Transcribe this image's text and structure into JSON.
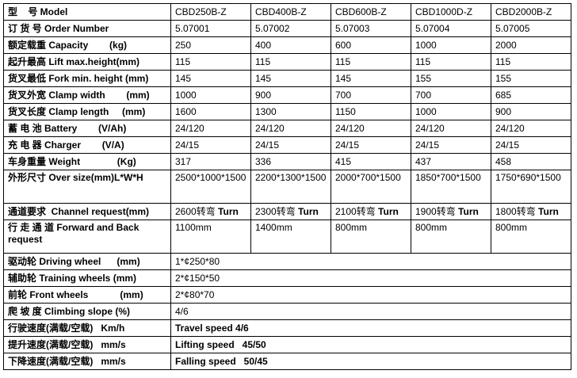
{
  "table": {
    "models_row": "Model",
    "rows": [
      {
        "label": "型    号 Model",
        "values": [
          "CBD250B-Z",
          "CBD400B-Z",
          "CBD600B-Z",
          "CBD1000D-Z",
          "CBD2000B-Z"
        ]
      },
      {
        "label": "订 货 号 Order Number",
        "values": [
          "5.07001",
          "5.07002",
          "5.07003",
          "5.07004",
          "5.07005"
        ]
      },
      {
        "label": "额定载重 Capacity        (kg)",
        "values": [
          "250",
          "400",
          "600",
          "1000",
          "2000"
        ]
      },
      {
        "label": "起升最高 Lift max.height(mm)",
        "values": [
          "115",
          "115",
          "115",
          "115",
          "115"
        ]
      },
      {
        "label": "货叉最低 Fork min. height (mm)",
        "values": [
          "145",
          "145",
          "145",
          "155",
          "155"
        ]
      },
      {
        "label": "货叉外宽 Clamp width        (mm)",
        "values": [
          "1000",
          "900",
          "700",
          "700",
          "685"
        ]
      },
      {
        "label": "货叉长度 Clamp length     (mm)",
        "values": [
          "1600",
          "1300",
          "1150",
          "1000",
          "900"
        ]
      },
      {
        "label": "蓄 电 池 Battery        (V/Ah)",
        "values": [
          "24/120",
          "24/120",
          "24/120",
          "24/120",
          "24/120"
        ]
      },
      {
        "label": "充 电 器 Charger        (V/A)",
        "values": [
          "24/15",
          "24/15",
          "24/15",
          "24/15",
          "24/15"
        ]
      },
      {
        "label": "车身重量 Weight              (Kg)",
        "values": [
          "317",
          "336",
          "415",
          "437",
          "458"
        ]
      },
      {
        "label": "外形尺寸 Over size(mm)L*W*H",
        "values": [
          "2500*1000*1500",
          "2200*1300*1500",
          "2000*700*1500",
          "1850*700*1500",
          "1750*690*1500"
        ]
      },
      {
        "label": "通道要求  Channel request(mm)",
        "values": [
          {
            "num": "2600转弯",
            "turn": "Turn"
          },
          {
            "num": "2300转弯",
            "turn": "Turn"
          },
          {
            "num": "2100转弯",
            "turn": "Turn"
          },
          {
            "num": "1900转弯",
            "turn": "Turn"
          },
          {
            "num": "1800转弯",
            "turn": "Turn"
          }
        ]
      },
      {
        "label": "行 走 通 道 Forward and Back request",
        "values": [
          "1100mm",
          "1400mm",
          "800mm",
          "800mm",
          "800mm"
        ]
      },
      {
        "label": "驱动轮 Driving wheel      (mm)",
        "value": "1*¢250*80"
      },
      {
        "label": "辅助轮 Training wheels (mm)",
        "value": "2*¢150*50"
      },
      {
        "label": "前轮 Front wheels            (mm)",
        "value": "2*¢80*70"
      },
      {
        "label": "爬 坡 度 Climbing slope (%)",
        "value": "4/6"
      },
      {
        "label": "行驶速度(满载/空载)   Km/h",
        "value": "Travel speed 4/6"
      },
      {
        "label": "提升速度(满载/空载)   mm/s",
        "value": "Lifting speed   45/50"
      },
      {
        "label": "下降速度(满载/空载)   mm/s",
        "value": "Falling speed   50/45"
      }
    ]
  }
}
